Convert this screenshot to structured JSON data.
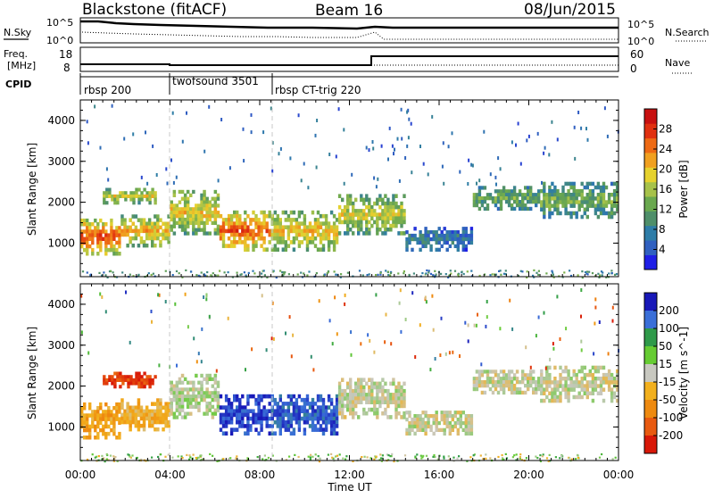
{
  "header": {
    "station": "Blackstone (fitACF)",
    "beam": "Beam 16",
    "date": "08/Jun/2015"
  },
  "noise_panel": {
    "left_label": "N.Sky",
    "right_label": "N.Search",
    "left_ticks": [
      "10^5",
      "10^0"
    ],
    "right_ticks": [
      "10^5",
      "10^0"
    ]
  },
  "freq_panel": {
    "label_line1": "Freq.",
    "label_line2": "[MHz]",
    "left_ticks": [
      "18",
      "8"
    ],
    "right_label": "Nave",
    "right_ticks": [
      "60",
      "0"
    ]
  },
  "cpid": {
    "label": "CPID",
    "segments": [
      {
        "name": "rbsp 200",
        "start_hour": 0
      },
      {
        "name": "twofsound 3501",
        "start_hour": 4
      },
      {
        "name": "rbsp CT-trig 220",
        "start_hour": 8.6
      }
    ]
  },
  "chart_data": [
    {
      "type": "heatmap",
      "name": "power",
      "xlabel": "",
      "ylabel": "Slant Range [km]",
      "x_range_hours": [
        0,
        24
      ],
      "ylim": [
        180,
        4500
      ],
      "y_ticks": [
        1000,
        2000,
        3000,
        4000
      ],
      "colorbar": {
        "label": "Power [dB]",
        "ticks": [
          "4",
          "8",
          "12",
          "16",
          "20",
          "24",
          "28"
        ],
        "colors": [
          "#1f1fe6",
          "#3060c0",
          "#2e7da8",
          "#4f8f6a",
          "#6aa84f",
          "#a7c24a",
          "#e6d22e",
          "#f0a020",
          "#ee6a14",
          "#e03010",
          "#c81010"
        ]
      },
      "bands": [
        {
          "start": 0.0,
          "end": 1.8,
          "range_lo": 700,
          "range_hi": 1600,
          "level": 0.82
        },
        {
          "start": 1.8,
          "end": 4.0,
          "range_lo": 900,
          "range_hi": 1700,
          "level": 0.65
        },
        {
          "start": 1.0,
          "end": 3.4,
          "range_lo": 1950,
          "range_hi": 2350,
          "level": 0.55
        },
        {
          "start": 4.0,
          "end": 6.2,
          "range_lo": 1200,
          "range_hi": 2300,
          "level": 0.6
        },
        {
          "start": 6.2,
          "end": 8.5,
          "range_lo": 800,
          "range_hi": 1800,
          "level": 0.8
        },
        {
          "start": 8.5,
          "end": 11.5,
          "range_lo": 800,
          "range_hi": 1800,
          "level": 0.62
        },
        {
          "start": 11.5,
          "end": 14.5,
          "range_lo": 1200,
          "range_hi": 2200,
          "level": 0.55
        },
        {
          "start": 14.5,
          "end": 17.5,
          "range_lo": 800,
          "range_hi": 1400,
          "level": 0.2
        },
        {
          "start": 17.5,
          "end": 20.5,
          "range_lo": 1800,
          "range_hi": 2400,
          "level": 0.38
        },
        {
          "start": 20.5,
          "end": 24.0,
          "range_lo": 1600,
          "range_hi": 2500,
          "level": 0.4
        }
      ]
    },
    {
      "type": "heatmap",
      "name": "velocity",
      "xlabel": "Time UT",
      "ylabel": "Slant Range [km]",
      "x_range_hours": [
        0,
        24
      ],
      "x_ticks": [
        "00:00",
        "04:00",
        "08:00",
        "12:00",
        "16:00",
        "20:00",
        "00:00"
      ],
      "ylim": [
        180,
        4500
      ],
      "y_ticks": [
        1000,
        2000,
        3000,
        4000
      ],
      "colorbar": {
        "label": "Velocity [m s^-1]",
        "ticks": [
          "200",
          "100",
          "50",
          "15",
          "-15",
          "-50",
          "-100",
          "-200"
        ],
        "colors": [
          "#1818b8",
          "#3a6fd8",
          "#2f9a4a",
          "#66cc33",
          "#c8c8c0",
          "#f2b01e",
          "#ee8a10",
          "#e85a10",
          "#d81808"
        ]
      },
      "bands": [
        {
          "start": 0.0,
          "end": 1.8,
          "range_lo": 700,
          "range_hi": 1600,
          "level": -0.35
        },
        {
          "start": 1.8,
          "end": 4.0,
          "range_lo": 900,
          "range_hi": 1700,
          "level": -0.25
        },
        {
          "start": 1.0,
          "end": 3.4,
          "range_lo": 1950,
          "range_hi": 2350,
          "level": -0.85
        },
        {
          "start": 4.0,
          "end": 6.2,
          "range_lo": 1200,
          "range_hi": 2300,
          "level": 0.05
        },
        {
          "start": 6.2,
          "end": 8.5,
          "range_lo": 800,
          "range_hi": 1800,
          "level": 0.9
        },
        {
          "start": 8.5,
          "end": 11.5,
          "range_lo": 800,
          "range_hi": 1800,
          "level": 0.8
        },
        {
          "start": 11.5,
          "end": 14.5,
          "range_lo": 1200,
          "range_hi": 2200,
          "level": 0.0
        },
        {
          "start": 14.5,
          "end": 17.5,
          "range_lo": 800,
          "range_hi": 1400,
          "level": 0.0
        },
        {
          "start": 17.5,
          "end": 20.5,
          "range_lo": 1800,
          "range_hi": 2400,
          "level": 0.0
        },
        {
          "start": 20.5,
          "end": 24.0,
          "range_lo": 1600,
          "range_hi": 2500,
          "level": 0.0
        }
      ]
    }
  ]
}
